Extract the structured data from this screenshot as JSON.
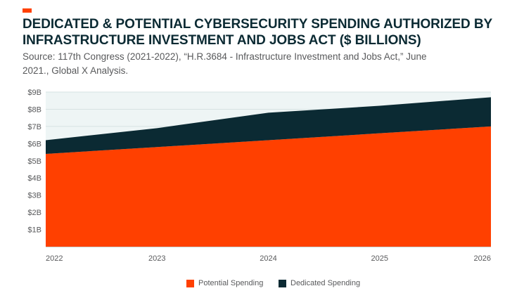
{
  "header": {
    "accent_color": "#ff4000",
    "title": "DEDICATED & POTENTIAL CYBERSECURITY SPENDING AUTHORIZED BY INFRASTRUCTURE INVESTMENT AND JOBS ACT ($ BILLIONS)",
    "subtitle": "Source: 117th Congress (2021-2022), “H.R.3684 - Infrastructure Investment and Jobs Act,” June 2021., Global X Analysis."
  },
  "chart_data": {
    "type": "area",
    "stacked": true,
    "title": "DEDICATED & POTENTIAL CYBERSECURITY SPENDING AUTHORIZED BY INFRASTRUCTURE INVESTMENT AND JOBS ACT ($ BILLIONS)",
    "x": [
      2022,
      2023,
      2024,
      2025,
      2026
    ],
    "x_tick_labels": [
      "2022",
      "2023",
      "2024",
      "2025",
      "2026"
    ],
    "y_tick_values": [
      1,
      2,
      3,
      4,
      5,
      6,
      7,
      8,
      9
    ],
    "y_tick_labels": [
      "$1B",
      "$2B",
      "$3B",
      "$4B",
      "$5B",
      "$6B",
      "$7B",
      "$8B",
      "$9B"
    ],
    "ylim": [
      0,
      9
    ],
    "series": [
      {
        "name": "Potential Spending",
        "color": "#ff4000",
        "values": [
          5.4,
          5.8,
          6.2,
          6.6,
          7.0
        ]
      },
      {
        "name": "Dedicated Spending",
        "color": "#0b2a33",
        "values": [
          0.8,
          1.1,
          1.6,
          1.6,
          1.7
        ]
      }
    ],
    "plot_background": "#eef5f5",
    "grid": true,
    "legend_position": "bottom-center"
  }
}
